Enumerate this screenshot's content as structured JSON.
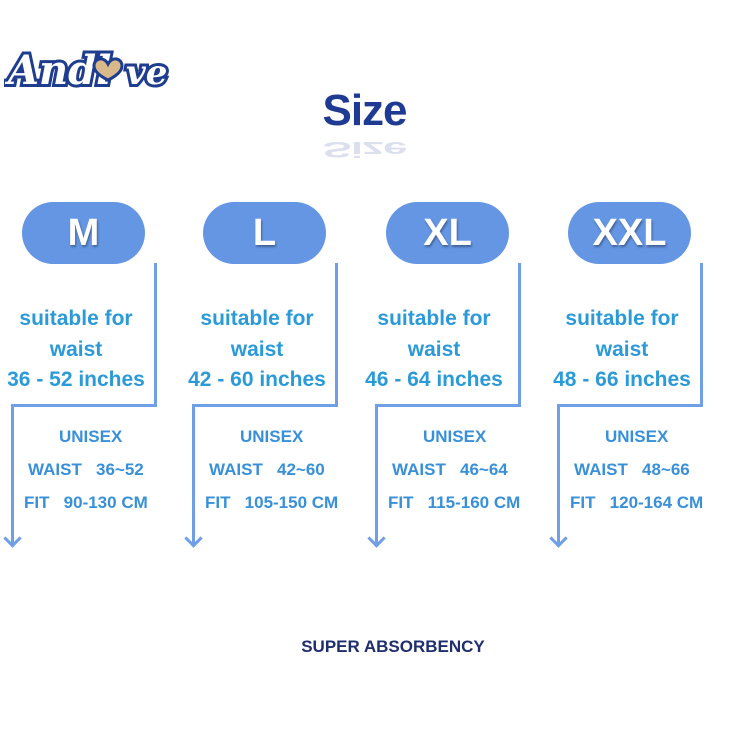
{
  "logo": {
    "text": "Andlove"
  },
  "title": "Size",
  "colors": {
    "pill": "#6496e4",
    "text": "#2b9ad8",
    "title": "#1f3a93"
  },
  "sizes": [
    {
      "label": "M",
      "suitable": "suitable for",
      "waist_word": "waist",
      "range": "36 - 52 inches",
      "unisex": "UNISEX",
      "waist": "WAIST   36~52",
      "fit": "FIT   90-130 CM"
    },
    {
      "label": "L",
      "suitable": "suitable for",
      "waist_word": "waist",
      "range": "42 - 60 inches",
      "unisex": "UNISEX",
      "waist": "WAIST   42~60",
      "fit": "FIT   105-150 CM"
    },
    {
      "label": "XL",
      "suitable": "suitable for",
      "waist_word": "waist",
      "range": "46 - 64 inches",
      "unisex": "UNISEX",
      "waist": "WAIST   46~64",
      "fit": "FIT   115-160 CM"
    },
    {
      "label": "XXL",
      "suitable": "suitable for",
      "waist_word": "waist",
      "range": "48 - 66 inches",
      "unisex": "UNISEX",
      "waist": "WAIST   48~66",
      "fit": "FIT   120-164 CM"
    }
  ],
  "footer": "SUPER ABSORBENCY"
}
